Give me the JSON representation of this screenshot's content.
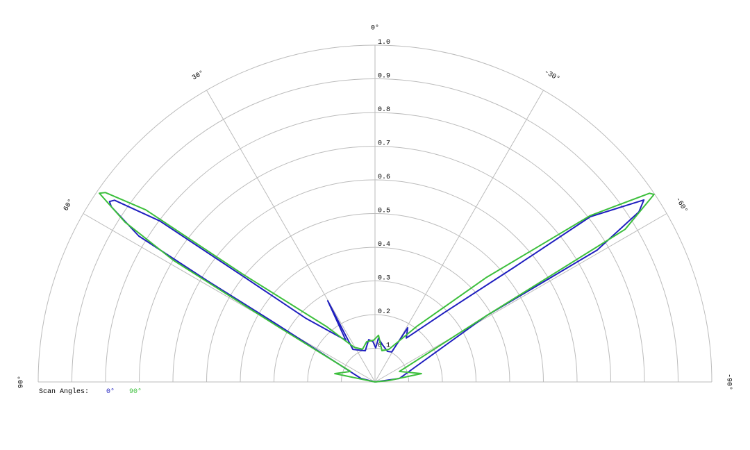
{
  "chart_data": {
    "type": "polar",
    "rlim": [
      0,
      1
    ],
    "rticks": [
      0.1,
      0.2,
      0.3,
      0.4,
      0.5,
      0.6,
      0.7,
      0.8,
      0.9,
      {
        "value": 1,
        "label": "1.0"
      }
    ],
    "thetalim": [
      -90,
      90
    ],
    "thetaticks": [
      {
        "value": 0,
        "label": "0°"
      },
      {
        "value": 30,
        "label": "30°"
      },
      {
        "value": 60,
        "label": "60°"
      },
      {
        "value": 90,
        "label": "90°"
      },
      {
        "value": -30,
        "label": "-30°"
      },
      {
        "value": -60,
        "label": "-60°"
      },
      {
        "value": -90,
        "label": "-90°"
      }
    ],
    "grid": true,
    "legend_title": "Scan Angles:",
    "series": [
      {
        "name": "0°",
        "color": "#1f1fbf",
        "theta": [
          0,
          76,
          59.6,
          58.9,
          58.3,
          56.4,
          55.8,
          55.1,
          53.2,
          51.3,
          47.4,
          35.0,
          30.2,
          34.2,
          17.3,
          8.4,
          3.0,
          -1.2,
          -4.5,
          -11.7,
          -22.2,
          -29.2,
          -31.1,
          -35.5,
          -45,
          -50.5,
          -52.5,
          -55.9,
          -57.2,
          -59.3,
          -59.3,
          -81.9,
          0
        ],
        "r": [
          0,
          0.043,
          0.335,
          0.578,
          0.824,
          0.94,
          0.953,
          0.943,
          0.798,
          0.502,
          0.28,
          0.151,
          0.279,
          0.117,
          0.097,
          0.127,
          0.12,
          0.101,
          0.13,
          0.112,
          0.098,
          0.102,
          0.188,
          0.16,
          0.292,
          0.535,
          0.806,
          0.964,
          0.932,
          0.767,
          0.384,
          0.073,
          0
        ]
      },
      {
        "name": "90°",
        "color": "#3cbf3c",
        "theta": [
          0,
          78.3,
          66.8,
          60.3,
          58.9,
          57.4,
          55.6,
          54.9,
          53.1,
          50.8,
          41.2,
          31.0,
          20.9,
          11.7,
          1.9,
          -4.3,
          -12.5,
          -23.0,
          -36.9,
          -46.8,
          -52.3,
          -55.5,
          -56.1,
          -58.6,
          -59.3,
          -66.8,
          -79.8,
          -84.3,
          0
        ],
        "r": [
          0,
          0.122,
          0.079,
          0.332,
          0.698,
          0.881,
          0.992,
          0.978,
          0.851,
          0.505,
          0.219,
          0.12,
          0.104,
          0.122,
          0.124,
          0.139,
          0.095,
          0.105,
          0.206,
          0.452,
          0.808,
          0.989,
          0.998,
          0.87,
          0.384,
          0.079,
          0.14,
          0.041,
          0
        ]
      }
    ]
  }
}
